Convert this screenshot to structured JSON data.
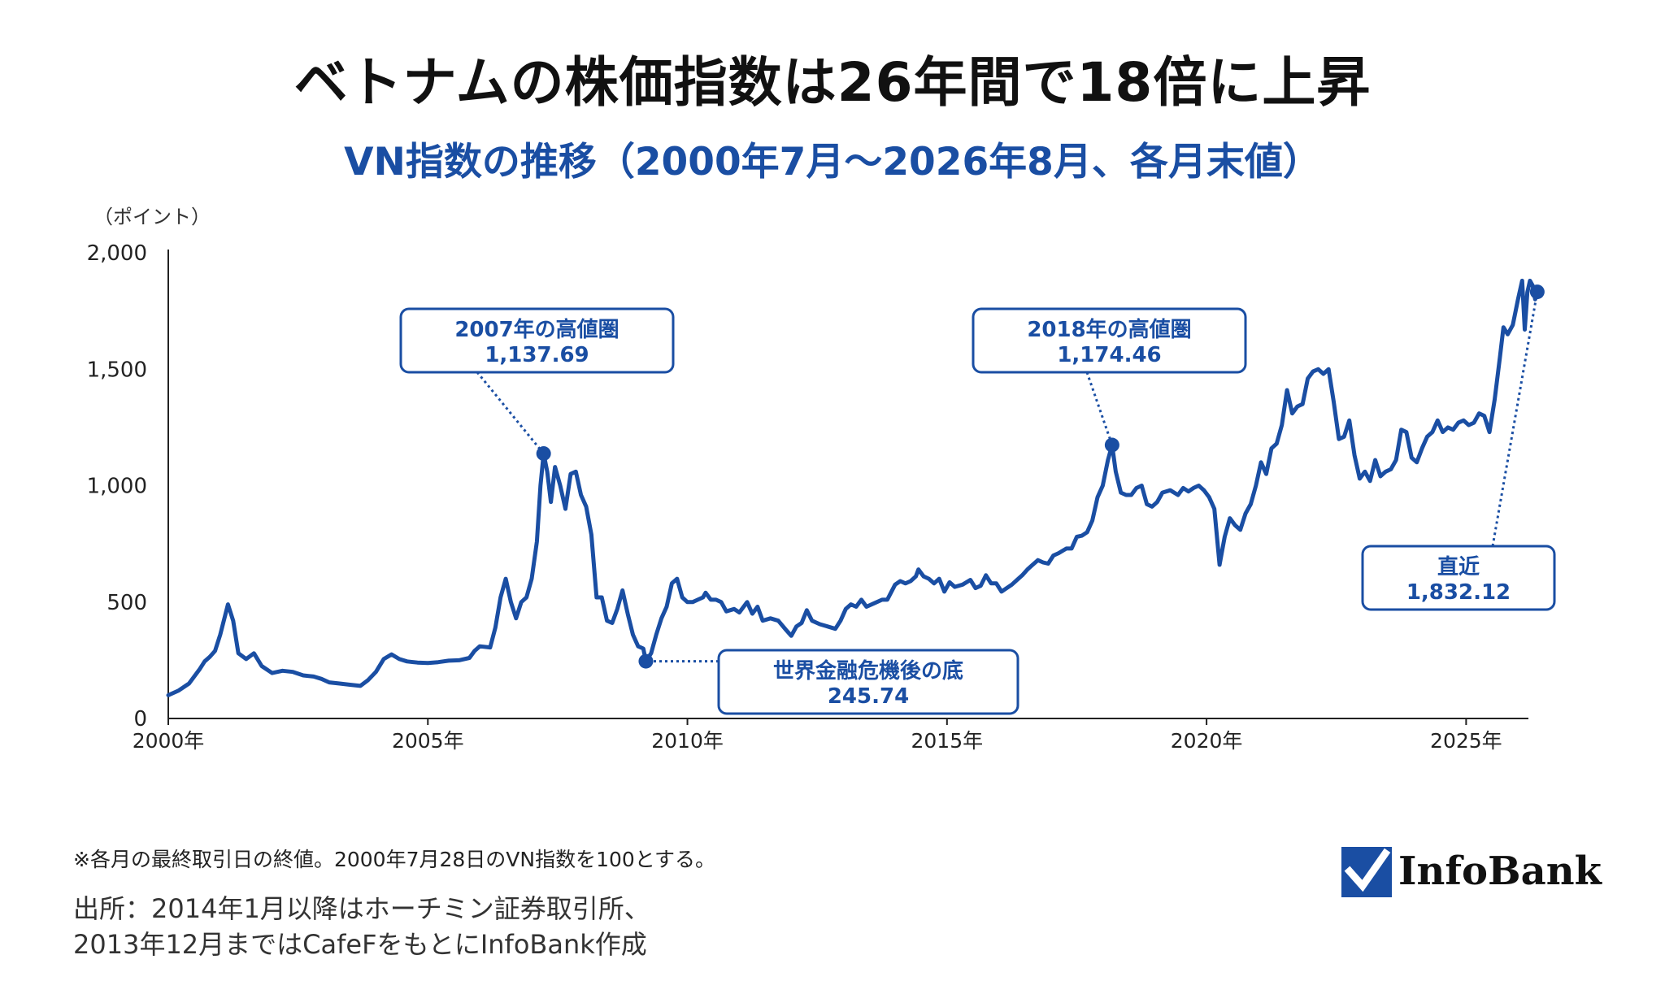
{
  "title": "ベトナムの株価指数は26年間で18倍に上昇",
  "subtitle": "VN指数の推移（2000年7月～2026年8月、各月末値）",
  "unit_label": "（ポイント）",
  "footnote": "※各月の最終取引日の終値。2000年7月28日のVN指数を100とする。",
  "source_line1": "出所：2014年1月以降はホーチミン証券取引所、",
  "source_line2": "2013年12月まではCafeFをもとにInfoBank作成",
  "logo_text": "InfoBank",
  "colors": {
    "line": "#1a4ea3",
    "text_blue": "#1a4ea3",
    "box_border": "#1a4ea3"
  },
  "chart_data": {
    "type": "line",
    "ylim": [
      0,
      2000
    ],
    "y_ticks": [
      0,
      500,
      1000,
      1500,
      2000
    ],
    "y_tick_labels": [
      "0",
      "500",
      "1,000",
      "1,500",
      "2,000"
    ],
    "x_ticks": [
      2000,
      2005,
      2010,
      2015,
      2020,
      2025
    ],
    "x_tick_labels": [
      "2000年",
      "2005年",
      "2010年",
      "2015年",
      "2020年",
      "2025年"
    ],
    "x_range": [
      2000.0,
      2026.2
    ],
    "series": [
      {
        "points": [
          [
            2000.0,
            100
          ],
          [
            2000.2,
            120
          ],
          [
            2000.4,
            150
          ],
          [
            2000.6,
            210
          ],
          [
            2000.7,
            245
          ],
          [
            2000.8,
            265
          ],
          [
            2000.9,
            290
          ],
          [
            2001.0,
            360
          ],
          [
            2001.15,
            490
          ],
          [
            2001.25,
            420
          ],
          [
            2001.35,
            280
          ],
          [
            2001.5,
            255
          ],
          [
            2001.65,
            280
          ],
          [
            2001.8,
            225
          ],
          [
            2002.0,
            195
          ],
          [
            2002.2,
            205
          ],
          [
            2002.4,
            200
          ],
          [
            2002.6,
            185
          ],
          [
            2002.8,
            180
          ],
          [
            2002.95,
            170
          ],
          [
            2003.1,
            155
          ],
          [
            2003.3,
            150
          ],
          [
            2003.5,
            145
          ],
          [
            2003.7,
            140
          ],
          [
            2003.85,
            165
          ],
          [
            2004.0,
            200
          ],
          [
            2004.15,
            255
          ],
          [
            2004.3,
            275
          ],
          [
            2004.45,
            255
          ],
          [
            2004.6,
            245
          ],
          [
            2004.8,
            240
          ],
          [
            2005.0,
            238
          ],
          [
            2005.2,
            242
          ],
          [
            2005.4,
            248
          ],
          [
            2005.6,
            250
          ],
          [
            2005.8,
            260
          ],
          [
            2005.9,
            290
          ],
          [
            2006.0,
            310
          ],
          [
            2006.2,
            305
          ],
          [
            2006.3,
            390
          ],
          [
            2006.4,
            520
          ],
          [
            2006.5,
            600
          ],
          [
            2006.6,
            500
          ],
          [
            2006.7,
            430
          ],
          [
            2006.8,
            500
          ],
          [
            2006.9,
            520
          ],
          [
            2007.0,
            600
          ],
          [
            2007.1,
            760
          ],
          [
            2007.17,
            1000
          ],
          [
            2007.23,
            1137.69
          ],
          [
            2007.3,
            1060
          ],
          [
            2007.37,
            930
          ],
          [
            2007.45,
            1080
          ],
          [
            2007.55,
            1000
          ],
          [
            2007.65,
            900
          ],
          [
            2007.75,
            1050
          ],
          [
            2007.85,
            1060
          ],
          [
            2007.95,
            960
          ],
          [
            2008.05,
            910
          ],
          [
            2008.15,
            790
          ],
          [
            2008.25,
            520
          ],
          [
            2008.35,
            520
          ],
          [
            2008.45,
            420
          ],
          [
            2008.55,
            410
          ],
          [
            2008.65,
            470
          ],
          [
            2008.75,
            550
          ],
          [
            2008.85,
            450
          ],
          [
            2008.95,
            360
          ],
          [
            2009.05,
            310
          ],
          [
            2009.15,
            300
          ],
          [
            2009.2,
            245.74
          ],
          [
            2009.3,
            280
          ],
          [
            2009.4,
            360
          ],
          [
            2009.5,
            430
          ],
          [
            2009.6,
            480
          ],
          [
            2009.7,
            580
          ],
          [
            2009.8,
            600
          ],
          [
            2009.9,
            520
          ],
          [
            2010.0,
            500
          ],
          [
            2010.1,
            500
          ],
          [
            2010.2,
            510
          ],
          [
            2010.3,
            520
          ],
          [
            2010.35,
            540
          ],
          [
            2010.45,
            510
          ],
          [
            2010.55,
            510
          ],
          [
            2010.65,
            500
          ],
          [
            2010.75,
            460
          ],
          [
            2010.9,
            470
          ],
          [
            2011.0,
            455
          ],
          [
            2011.15,
            500
          ],
          [
            2011.25,
            450
          ],
          [
            2011.35,
            480
          ],
          [
            2011.45,
            420
          ],
          [
            2011.6,
            430
          ],
          [
            2011.75,
            420
          ],
          [
            2011.9,
            380
          ],
          [
            2012.0,
            355
          ],
          [
            2012.1,
            395
          ],
          [
            2012.2,
            410
          ],
          [
            2012.3,
            465
          ],
          [
            2012.4,
            420
          ],
          [
            2012.55,
            405
          ],
          [
            2012.7,
            395
          ],
          [
            2012.85,
            385
          ],
          [
            2012.95,
            420
          ],
          [
            2013.05,
            470
          ],
          [
            2013.15,
            490
          ],
          [
            2013.25,
            480
          ],
          [
            2013.35,
            510
          ],
          [
            2013.45,
            480
          ],
          [
            2013.6,
            495
          ],
          [
            2013.75,
            510
          ],
          [
            2013.85,
            510
          ],
          [
            2014.0,
            575
          ],
          [
            2014.1,
            590
          ],
          [
            2014.2,
            580
          ],
          [
            2014.3,
            590
          ],
          [
            2014.4,
            610
          ],
          [
            2014.45,
            640
          ],
          [
            2014.55,
            610
          ],
          [
            2014.65,
            600
          ],
          [
            2014.75,
            580
          ],
          [
            2014.85,
            600
          ],
          [
            2014.95,
            545
          ],
          [
            2015.05,
            585
          ],
          [
            2015.15,
            565
          ],
          [
            2015.3,
            575
          ],
          [
            2015.45,
            595
          ],
          [
            2015.55,
            560
          ],
          [
            2015.65,
            570
          ],
          [
            2015.75,
            615
          ],
          [
            2015.85,
            580
          ],
          [
            2015.95,
            580
          ],
          [
            2016.05,
            545
          ],
          [
            2016.15,
            560
          ],
          [
            2016.25,
            575
          ],
          [
            2016.35,
            595
          ],
          [
            2016.45,
            615
          ],
          [
            2016.55,
            640
          ],
          [
            2016.65,
            660
          ],
          [
            2016.75,
            680
          ],
          [
            2016.85,
            670
          ],
          [
            2016.95,
            665
          ],
          [
            2017.05,
            700
          ],
          [
            2017.15,
            710
          ],
          [
            2017.3,
            730
          ],
          [
            2017.4,
            730
          ],
          [
            2017.5,
            780
          ],
          [
            2017.6,
            785
          ],
          [
            2017.7,
            800
          ],
          [
            2017.8,
            850
          ],
          [
            2017.9,
            950
          ],
          [
            2018.0,
            1000
          ],
          [
            2018.1,
            1110
          ],
          [
            2018.18,
            1174.46
          ],
          [
            2018.25,
            1060
          ],
          [
            2018.35,
            970
          ],
          [
            2018.45,
            960
          ],
          [
            2018.55,
            960
          ],
          [
            2018.65,
            990
          ],
          [
            2018.75,
            1000
          ],
          [
            2018.85,
            920
          ],
          [
            2018.95,
            910
          ],
          [
            2019.05,
            930
          ],
          [
            2019.15,
            970
          ],
          [
            2019.3,
            980
          ],
          [
            2019.45,
            960
          ],
          [
            2019.55,
            990
          ],
          [
            2019.65,
            975
          ],
          [
            2019.75,
            990
          ],
          [
            2019.85,
            1000
          ],
          [
            2019.95,
            980
          ],
          [
            2020.05,
            950
          ],
          [
            2020.15,
            900
          ],
          [
            2020.25,
            660
          ],
          [
            2020.35,
            780
          ],
          [
            2020.45,
            860
          ],
          [
            2020.55,
            830
          ],
          [
            2020.65,
            810
          ],
          [
            2020.75,
            880
          ],
          [
            2020.85,
            920
          ],
          [
            2020.95,
            1000
          ],
          [
            2021.05,
            1100
          ],
          [
            2021.15,
            1050
          ],
          [
            2021.25,
            1160
          ],
          [
            2021.35,
            1180
          ],
          [
            2021.45,
            1260
          ],
          [
            2021.55,
            1410
          ],
          [
            2021.65,
            1310
          ],
          [
            2021.75,
            1340
          ],
          [
            2021.85,
            1350
          ],
          [
            2021.95,
            1460
          ],
          [
            2022.05,
            1490
          ],
          [
            2022.15,
            1500
          ],
          [
            2022.25,
            1480
          ],
          [
            2022.35,
            1500
          ],
          [
            2022.45,
            1360
          ],
          [
            2022.55,
            1200
          ],
          [
            2022.65,
            1210
          ],
          [
            2022.75,
            1280
          ],
          [
            2022.85,
            1130
          ],
          [
            2022.95,
            1030
          ],
          [
            2023.05,
            1060
          ],
          [
            2023.15,
            1020
          ],
          [
            2023.25,
            1110
          ],
          [
            2023.35,
            1040
          ],
          [
            2023.45,
            1060
          ],
          [
            2023.55,
            1070
          ],
          [
            2023.65,
            1110
          ],
          [
            2023.75,
            1240
          ],
          [
            2023.85,
            1230
          ],
          [
            2023.95,
            1120
          ],
          [
            2024.05,
            1100
          ],
          [
            2024.15,
            1160
          ],
          [
            2024.25,
            1210
          ],
          [
            2024.35,
            1230
          ],
          [
            2024.45,
            1280
          ],
          [
            2024.55,
            1230
          ],
          [
            2024.65,
            1250
          ],
          [
            2024.75,
            1240
          ],
          [
            2024.85,
            1270
          ],
          [
            2024.95,
            1280
          ],
          [
            2025.05,
            1260
          ],
          [
            2025.15,
            1270
          ],
          [
            2025.25,
            1310
          ],
          [
            2025.35,
            1300
          ],
          [
            2025.45,
            1230
          ],
          [
            2025.55,
            1370
          ],
          [
            2025.65,
            1550
          ],
          [
            2025.72,
            1680
          ],
          [
            2025.8,
            1650
          ],
          [
            2025.9,
            1690
          ],
          [
            2026.0,
            1800
          ],
          [
            2026.08,
            1880
          ],
          [
            2026.13,
            1670
          ],
          [
            2026.18,
            1830
          ],
          [
            2026.23,
            1880
          ],
          [
            2026.28,
            1860
          ],
          [
            2026.33,
            1800
          ],
          [
            2026.37,
            1832.12
          ]
        ]
      }
    ],
    "annotations": [
      {
        "label": "2007年の高値圏",
        "value_text": "1,137.69",
        "x": 2007.23,
        "y": 1137.69
      },
      {
        "label": "世界金融危機後の底",
        "value_text": "245.74",
        "x": 2009.2,
        "y": 245.74
      },
      {
        "label": "2018年の高値圏",
        "value_text": "1,174.46",
        "x": 2018.18,
        "y": 1174.46
      },
      {
        "label": "直近",
        "value_text": "1,832.12",
        "x": 2026.37,
        "y": 1832.12
      }
    ]
  }
}
